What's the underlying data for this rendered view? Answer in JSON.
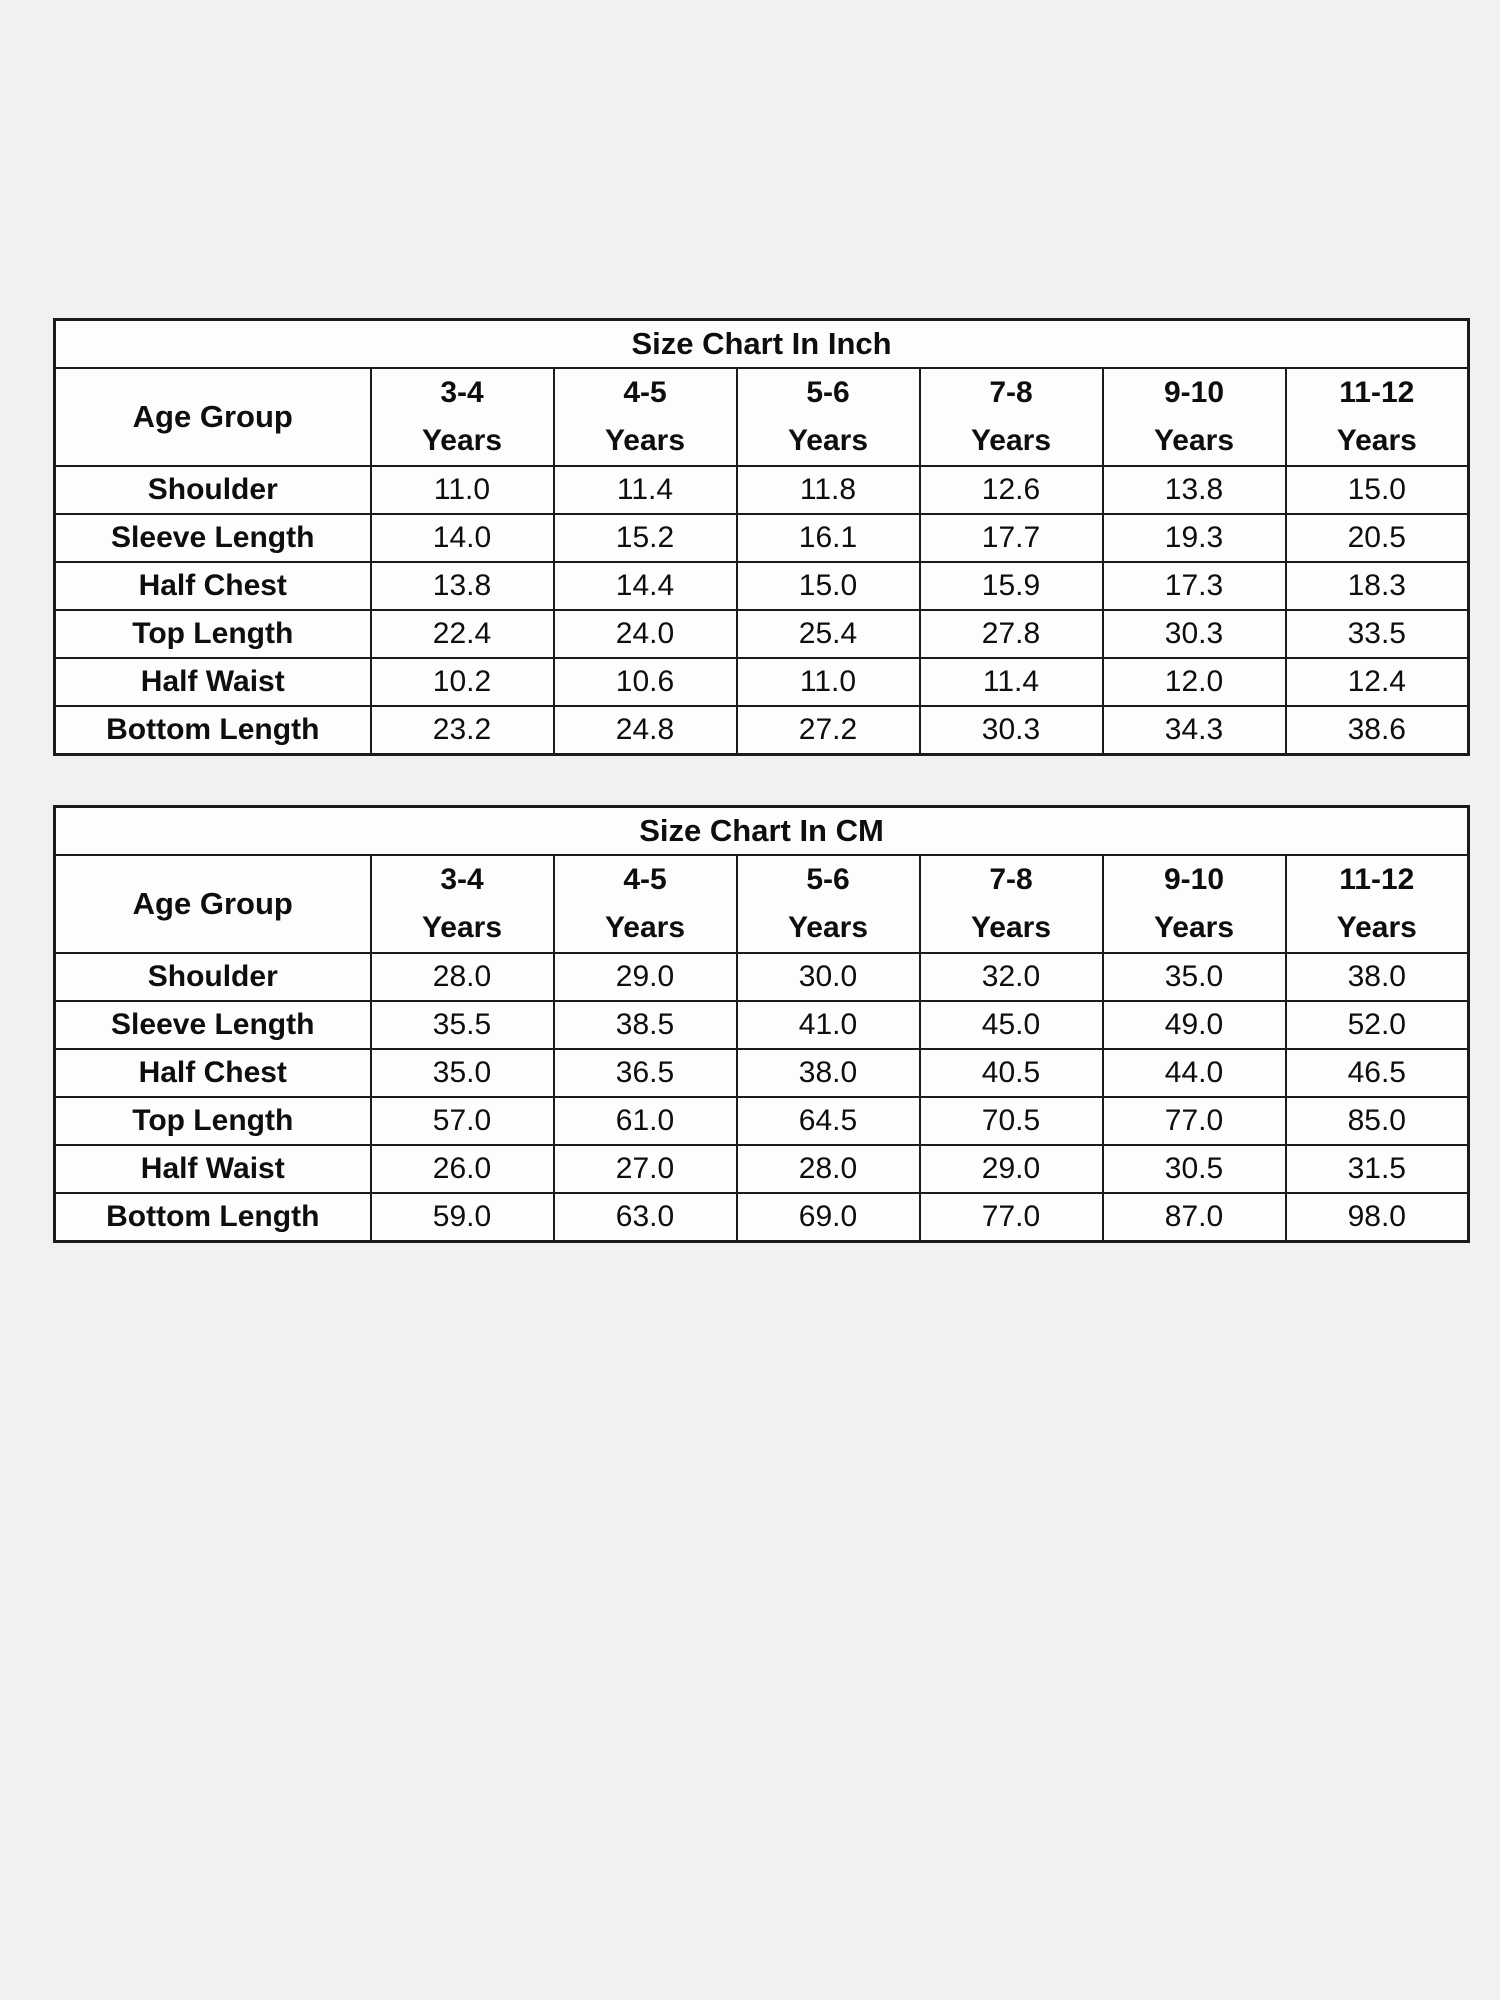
{
  "page": {
    "background_color": "#f2f1f1",
    "table_background_color": "#fdfdfd",
    "border_color": "#1b1b1b",
    "text_color": "#0e0e0e"
  },
  "tables": [
    {
      "name": "size-table-inch",
      "title": "Size Chart In Inch",
      "corner_label": "Age Group",
      "columns": [
        {
          "range": "3-4",
          "unit": "Years"
        },
        {
          "range": "4-5",
          "unit": "Years"
        },
        {
          "range": "5-6",
          "unit": "Years"
        },
        {
          "range": "7-8",
          "unit": "Years"
        },
        {
          "range": "9-10",
          "unit": "Years"
        },
        {
          "range": "11-12",
          "unit": "Years"
        }
      ],
      "rows": [
        {
          "label": "Shoulder",
          "values": [
            "11.0",
            "11.4",
            "11.8",
            "12.6",
            "13.8",
            "15.0"
          ]
        },
        {
          "label": "Sleeve Length",
          "values": [
            "14.0",
            "15.2",
            "16.1",
            "17.7",
            "19.3",
            "20.5"
          ]
        },
        {
          "label": "Half Chest",
          "values": [
            "13.8",
            "14.4",
            "15.0",
            "15.9",
            "17.3",
            "18.3"
          ]
        },
        {
          "label": "Top Length",
          "values": [
            "22.4",
            "24.0",
            "25.4",
            "27.8",
            "30.3",
            "33.5"
          ]
        },
        {
          "label": "Half Waist",
          "values": [
            "10.2",
            "10.6",
            "11.0",
            "11.4",
            "12.0",
            "12.4"
          ]
        },
        {
          "label": "Bottom Length",
          "values": [
            "23.2",
            "24.8",
            "27.2",
            "30.3",
            "34.3",
            "38.6"
          ]
        }
      ]
    },
    {
      "name": "size-table-cm",
      "title": "Size Chart In CM",
      "corner_label": "Age Group",
      "columns": [
        {
          "range": "3-4",
          "unit": "Years"
        },
        {
          "range": "4-5",
          "unit": "Years"
        },
        {
          "range": "5-6",
          "unit": "Years"
        },
        {
          "range": "7-8",
          "unit": "Years"
        },
        {
          "range": "9-10",
          "unit": "Years"
        },
        {
          "range": "11-12",
          "unit": "Years"
        }
      ],
      "rows": [
        {
          "label": "Shoulder",
          "values": [
            "28.0",
            "29.0",
            "30.0",
            "32.0",
            "35.0",
            "38.0"
          ]
        },
        {
          "label": "Sleeve Length",
          "values": [
            "35.5",
            "38.5",
            "41.0",
            "45.0",
            "49.0",
            "52.0"
          ]
        },
        {
          "label": "Half Chest",
          "values": [
            "35.0",
            "36.5",
            "38.0",
            "40.5",
            "44.0",
            "46.5"
          ]
        },
        {
          "label": "Top Length",
          "values": [
            "57.0",
            "61.0",
            "64.5",
            "70.5",
            "77.0",
            "85.0"
          ]
        },
        {
          "label": "Half Waist",
          "values": [
            "26.0",
            "27.0",
            "28.0",
            "29.0",
            "30.5",
            "31.5"
          ]
        },
        {
          "label": "Bottom Length",
          "values": [
            "59.0",
            "63.0",
            "69.0",
            "77.0",
            "87.0",
            "98.0"
          ]
        }
      ]
    }
  ],
  "chart_data": [
    {
      "type": "table",
      "title": "Size Chart In Inch",
      "corner_label": "Age Group",
      "categories": [
        "3-4 Years",
        "4-5 Years",
        "5-6 Years",
        "7-8 Years",
        "9-10 Years",
        "11-12 Years"
      ],
      "series": [
        {
          "name": "Shoulder",
          "values": [
            11.0,
            11.4,
            11.8,
            12.6,
            13.8,
            15.0
          ]
        },
        {
          "name": "Sleeve Length",
          "values": [
            14.0,
            15.2,
            16.1,
            17.7,
            19.3,
            20.5
          ]
        },
        {
          "name": "Half Chest",
          "values": [
            13.8,
            14.4,
            15.0,
            15.9,
            17.3,
            18.3
          ]
        },
        {
          "name": "Top Length",
          "values": [
            22.4,
            24.0,
            25.4,
            27.8,
            30.3,
            33.5
          ]
        },
        {
          "name": "Half Waist",
          "values": [
            10.2,
            10.6,
            11.0,
            11.4,
            12.0,
            12.4
          ]
        },
        {
          "name": "Bottom Length",
          "values": [
            23.2,
            24.8,
            27.2,
            30.3,
            34.3,
            38.6
          ]
        }
      ]
    },
    {
      "type": "table",
      "title": "Size Chart In CM",
      "corner_label": "Age Group",
      "categories": [
        "3-4 Years",
        "4-5 Years",
        "5-6 Years",
        "7-8 Years",
        "9-10 Years",
        "11-12 Years"
      ],
      "series": [
        {
          "name": "Shoulder",
          "values": [
            28.0,
            29.0,
            30.0,
            32.0,
            35.0,
            38.0
          ]
        },
        {
          "name": "Sleeve Length",
          "values": [
            35.5,
            38.5,
            41.0,
            45.0,
            49.0,
            52.0
          ]
        },
        {
          "name": "Half Chest",
          "values": [
            35.0,
            36.5,
            38.0,
            40.5,
            44.0,
            46.5
          ]
        },
        {
          "name": "Top Length",
          "values": [
            57.0,
            61.0,
            64.5,
            70.5,
            77.0,
            85.0
          ]
        },
        {
          "name": "Half Waist",
          "values": [
            26.0,
            27.0,
            28.0,
            29.0,
            30.5,
            31.5
          ]
        },
        {
          "name": "Bottom Length",
          "values": [
            59.0,
            63.0,
            69.0,
            77.0,
            87.0,
            98.0
          ]
        }
      ]
    }
  ]
}
